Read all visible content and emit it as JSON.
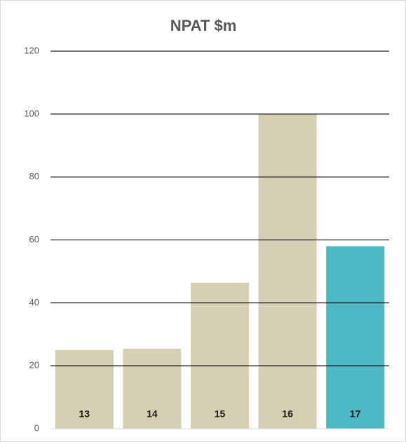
{
  "chart_data": {
    "type": "bar",
    "title": "NPAT $m",
    "categories": [
      "13",
      "14",
      "15",
      "16",
      "17"
    ],
    "values": [
      25,
      25.4,
      46.4,
      100,
      58
    ],
    "colors": [
      "#d6cfb4",
      "#d6cfb4",
      "#d6cfb4",
      "#d6cfb4",
      "#4bbac4"
    ],
    "ylim": [
      0,
      120
    ],
    "yticks": [
      0,
      20,
      40,
      60,
      80,
      100,
      120
    ],
    "grid": true
  }
}
